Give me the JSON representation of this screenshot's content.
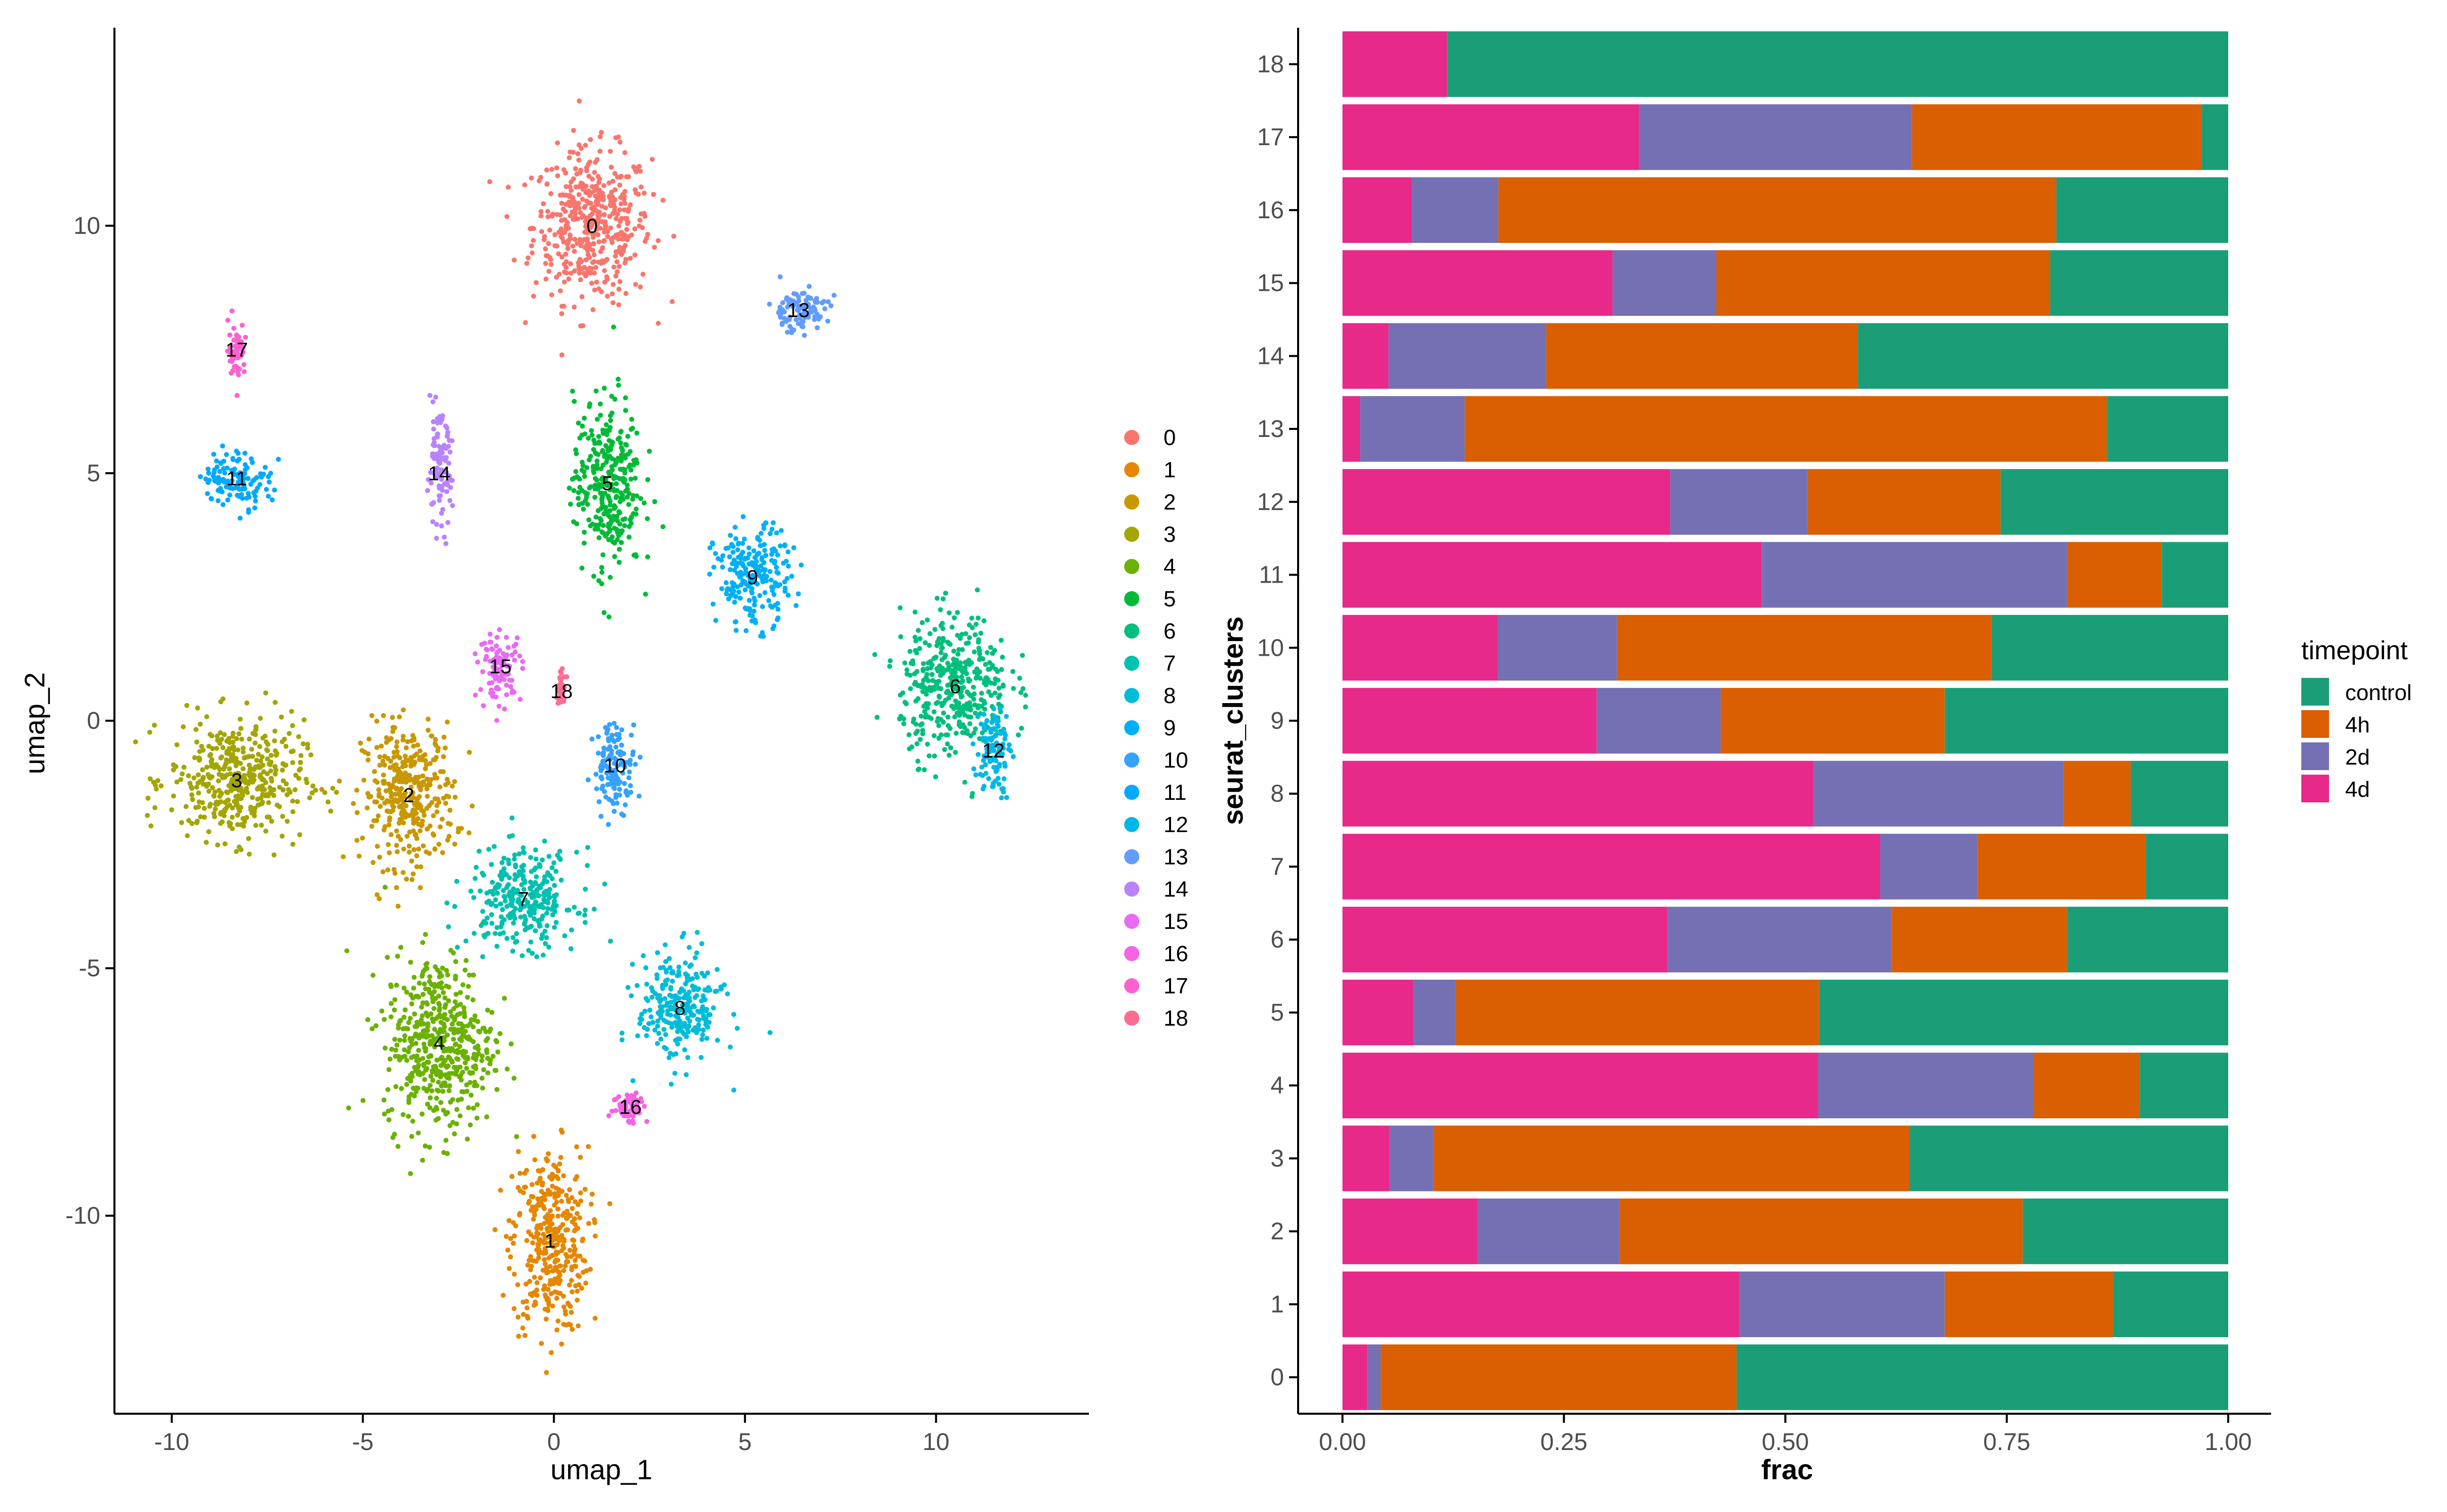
{
  "chart_data": [
    {
      "type": "scatter",
      "xlabel": "umap_1",
      "ylabel": "umap_2",
      "xlim": [
        -11.5,
        14.0
      ],
      "ylim": [
        -14.0,
        14.0
      ],
      "x_ticks": [
        "-10",
        "-5",
        "0",
        "5",
        "10"
      ],
      "y_ticks": [
        "-10",
        "-5",
        "0",
        "5",
        "10"
      ],
      "x_tick_values": [
        -10,
        -5,
        0,
        5,
        10
      ],
      "y_tick_values": [
        -10,
        -5,
        0,
        5,
        10
      ],
      "grid": false,
      "legend_position": "right",
      "clusters": [
        {
          "label": "0",
          "color": "#F8766D",
          "centroid": [
            1.0,
            10.0
          ],
          "spread": [
            1.4,
            1.4
          ]
        },
        {
          "label": "1",
          "color": "#E58700",
          "centroid": [
            -0.1,
            -10.5
          ],
          "spread": [
            0.9,
            1.7
          ]
        },
        {
          "label": "2",
          "color": "#C99800",
          "centroid": [
            -3.8,
            -1.5
          ],
          "spread": [
            1.1,
            1.3
          ]
        },
        {
          "label": "3",
          "color": "#A3A500",
          "centroid": [
            -8.3,
            -1.2
          ],
          "spread": [
            1.6,
            1.1
          ]
        },
        {
          "label": "4",
          "color": "#6BB100",
          "centroid": [
            -3.0,
            -6.5
          ],
          "spread": [
            1.3,
            1.6
          ]
        },
        {
          "label": "5",
          "color": "#00BA38",
          "centroid": [
            1.4,
            4.8
          ],
          "spread": [
            0.8,
            1.6
          ]
        },
        {
          "label": "6",
          "color": "#00BF7D",
          "centroid": [
            10.5,
            0.7
          ],
          "spread": [
            1.3,
            1.3
          ]
        },
        {
          "label": "7",
          "color": "#00C0AF",
          "centroid": [
            -0.8,
            -3.6
          ],
          "spread": [
            1.3,
            0.9
          ]
        },
        {
          "label": "8",
          "color": "#00BCD8",
          "centroid": [
            3.3,
            -5.8
          ],
          "spread": [
            1.0,
            1.0
          ]
        },
        {
          "label": "9",
          "color": "#00B0F6",
          "centroid": [
            5.2,
            2.9
          ],
          "spread": [
            0.9,
            0.9
          ]
        },
        {
          "label": "10",
          "color": "#35A2FF",
          "centroid": [
            1.6,
            -0.9
          ],
          "spread": [
            0.5,
            0.8
          ]
        },
        {
          "label": "11",
          "color": "#00A9FF",
          "centroid": [
            -8.3,
            4.9
          ],
          "spread": [
            0.8,
            0.5
          ]
        },
        {
          "label": "12",
          "color": "#00B8E7",
          "centroid": [
            11.5,
            -0.6
          ],
          "spread": [
            0.4,
            0.8
          ]
        },
        {
          "label": "13",
          "color": "#619CFF",
          "centroid": [
            6.4,
            8.3
          ],
          "spread": [
            0.7,
            0.4
          ]
        },
        {
          "label": "14",
          "color": "#B983FF",
          "centroid": [
            -3.0,
            5.0
          ],
          "spread": [
            0.3,
            1.0
          ]
        },
        {
          "label": "15",
          "color": "#E76BF3",
          "centroid": [
            -1.4,
            1.1
          ],
          "spread": [
            0.5,
            0.6
          ]
        },
        {
          "label": "16",
          "color": "#F564E3",
          "centroid": [
            2.0,
            -7.8
          ],
          "spread": [
            0.4,
            0.3
          ]
        },
        {
          "label": "17",
          "color": "#FD61D1",
          "centroid": [
            -8.3,
            7.5
          ],
          "spread": [
            0.2,
            0.5
          ]
        },
        {
          "label": "18",
          "color": "#FF6C91",
          "centroid": [
            0.2,
            0.6
          ],
          "spread": [
            0.1,
            0.3
          ]
        }
      ]
    },
    {
      "type": "bar",
      "orientation": "horizontal",
      "stacked": true,
      "xlabel": "frac",
      "ylabel": "seurat_clusters",
      "xlim": [
        0,
        1
      ],
      "x_ticks": [
        "0.00",
        "0.25",
        "0.50",
        "0.75",
        "1.00"
      ],
      "x_tick_values": [
        0,
        0.25,
        0.5,
        0.75,
        1.0
      ],
      "categories": [
        "0",
        "1",
        "2",
        "3",
        "4",
        "5",
        "6",
        "7",
        "8",
        "9",
        "10",
        "11",
        "12",
        "13",
        "14",
        "15",
        "16",
        "17",
        "18"
      ],
      "stack_order": [
        "4d",
        "2d",
        "4h",
        "control"
      ],
      "series": [
        {
          "name": "4d",
          "color": "#E7298A",
          "values": [
            0.028,
            0.448,
            0.153,
            0.053,
            0.537,
            0.08,
            0.367,
            0.607,
            0.532,
            0.287,
            0.175,
            0.473,
            0.37,
            0.02,
            0.052,
            0.305,
            0.078,
            0.335,
            0.118
          ]
        },
        {
          "name": "2d",
          "color": "#7570B3",
          "values": [
            0.015,
            0.232,
            0.16,
            0.05,
            0.243,
            0.048,
            0.253,
            0.11,
            0.282,
            0.14,
            0.135,
            0.345,
            0.155,
            0.118,
            0.178,
            0.117,
            0.098,
            0.308,
            0.0
          ]
        },
        {
          "name": "4h",
          "color": "#D95F02",
          "values": [
            0.402,
            0.19,
            0.455,
            0.537,
            0.12,
            0.41,
            0.198,
            0.19,
            0.076,
            0.253,
            0.423,
            0.107,
            0.218,
            0.725,
            0.352,
            0.377,
            0.63,
            0.327,
            0.0
          ]
        },
        {
          "name": "control",
          "color": "#1B9E77",
          "values": [
            0.555,
            0.13,
            0.232,
            0.36,
            0.1,
            0.462,
            0.182,
            0.093,
            0.11,
            0.32,
            0.267,
            0.075,
            0.257,
            0.137,
            0.418,
            0.201,
            0.194,
            0.03,
            0.882
          ]
        }
      ],
      "legend": {
        "title": "timepoint",
        "entries": [
          "control",
          "4h",
          "2d",
          "4d"
        ],
        "position": "right"
      }
    }
  ]
}
